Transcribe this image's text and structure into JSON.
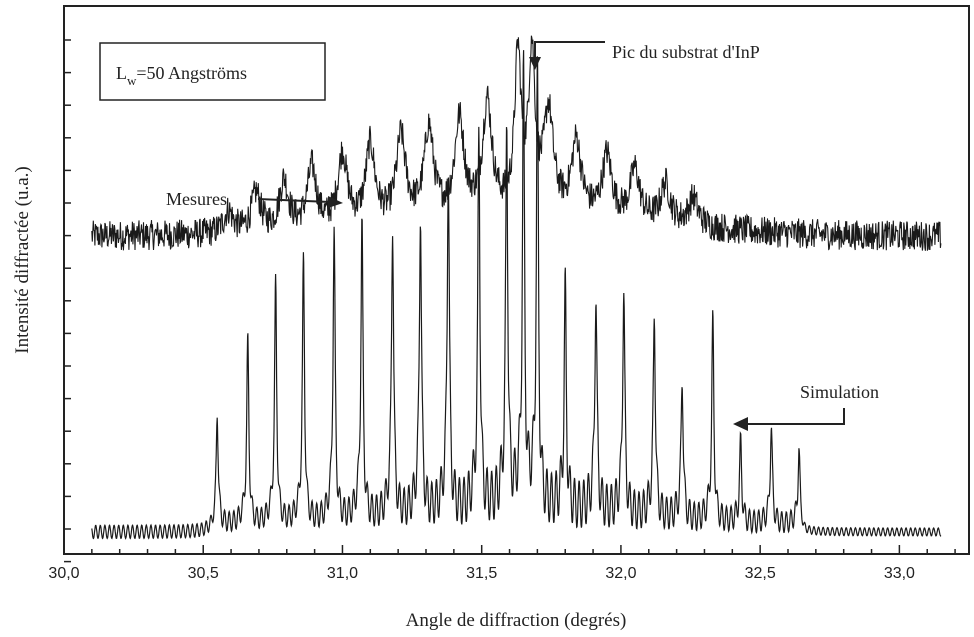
{
  "chart_data": {
    "type": "line",
    "title": "",
    "xlabel": "Angle de diffraction (degrés)",
    "ylabel": "Intensité diffractée (u.a.)",
    "xlim": [
      30.0,
      33.25
    ],
    "x_ticks": [
      "30,0",
      "30,5",
      "31,0",
      "31,5",
      "32,0",
      "32,5",
      "33,0"
    ],
    "x_tick_values": [
      30.0,
      30.5,
      31.0,
      31.5,
      32.0,
      32.5,
      33.0
    ],
    "y_ticks_labeled": false,
    "grid": false,
    "legend": "none",
    "inset_label": {
      "prefix": "L",
      "subscript": "w",
      "suffix": "=50 Angströms"
    },
    "annotations": [
      {
        "text": "Pic du substrat d'InP",
        "x": 31.68
      },
      {
        "text": "Mesures",
        "x": 31.0
      },
      {
        "text": "Simulation",
        "x": 32.4
      }
    ],
    "series": [
      {
        "id": "mesures",
        "x_range": [
          30.1,
          33.15
        ],
        "baseline": 0.58,
        "peak_positions": [
          30.59,
          30.69,
          30.79,
          30.89,
          31.0,
          31.1,
          31.21,
          31.31,
          31.42,
          31.52,
          31.63,
          31.68,
          31.74,
          31.84,
          31.95,
          32.05,
          32.16,
          32.26
        ],
        "peak_heights": [
          0.62,
          0.65,
          0.67,
          0.69,
          0.71,
          0.72,
          0.73,
          0.74,
          0.75,
          0.78,
          0.86,
          0.86,
          0.76,
          0.71,
          0.69,
          0.67,
          0.65,
          0.63
        ]
      },
      {
        "id": "simulation",
        "x_range": [
          30.1,
          33.15
        ],
        "baseline": 0.04,
        "peak_positions": [
          30.55,
          30.66,
          30.76,
          30.86,
          30.97,
          31.07,
          31.18,
          31.28,
          31.38,
          31.49,
          31.59,
          31.65,
          31.7,
          31.8,
          31.91,
          32.01,
          32.12,
          32.22,
          32.33,
          32.43,
          32.54,
          32.64
        ],
        "peak_heights": [
          0.24,
          0.36,
          0.46,
          0.5,
          0.55,
          0.56,
          0.56,
          0.58,
          0.66,
          0.7,
          0.71,
          0.79,
          0.79,
          0.42,
          0.43,
          0.44,
          0.4,
          0.29,
          0.39,
          0.18,
          0.21,
          0.18
        ]
      }
    ]
  }
}
